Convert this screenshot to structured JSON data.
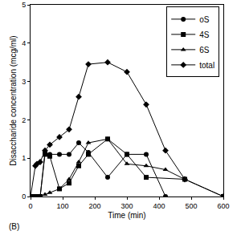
{
  "chart_data": {
    "type": "line",
    "x_label": "Time (min)",
    "y_label": "Disaccharide concentration (mcg/ml)",
    "annotations": [
      "(B)"
    ],
    "xlim": [
      0,
      600
    ],
    "xticks": [
      0,
      100,
      200,
      300,
      400,
      500,
      600
    ],
    "ylim": [
      0,
      5
    ],
    "yticks": [
      0,
      1,
      2,
      3,
      4,
      5
    ],
    "grid": false,
    "legend": "top right",
    "series": [
      {
        "name": "oS",
        "color": "#000000",
        "marker": "circle",
        "x": [
          0,
          15,
          30,
          45,
          60,
          90,
          120,
          150,
          180,
          240,
          300,
          360,
          420
        ],
        "values": [
          0,
          0,
          0,
          1.15,
          1.1,
          1.1,
          1.1,
          1.4,
          1.15,
          0.5,
          1.1,
          1.1,
          0
        ]
      },
      {
        "name": "4S",
        "color": "#000000",
        "marker": "square",
        "x": [
          0,
          15,
          30,
          45,
          60,
          90,
          120,
          150,
          180,
          240,
          300,
          360,
          480,
          600
        ],
        "values": [
          0,
          0,
          0,
          1.1,
          1.05,
          0.2,
          0.35,
          0.8,
          1.1,
          1.5,
          1.1,
          0.5,
          0.45,
          0
        ]
      },
      {
        "name": "6S",
        "color": "#000000",
        "marker": "triangle-up",
        "x": [
          0,
          30,
          45,
          60,
          90,
          120,
          150,
          180,
          240,
          300,
          360,
          420,
          480
        ],
        "values": [
          0,
          0,
          0.05,
          0.1,
          0.2,
          0.45,
          0.9,
          1.4,
          1.5,
          0.85,
          0.8,
          0.7,
          0.45
        ]
      },
      {
        "name": "total",
        "color": "#000000",
        "marker": "diamond",
        "x": [
          0,
          15,
          20,
          30,
          45,
          60,
          90,
          120,
          150,
          180,
          240,
          300,
          360,
          420,
          480,
          600
        ],
        "values": [
          0,
          0.8,
          0.85,
          0.9,
          1.2,
          1.35,
          1.55,
          1.75,
          2.6,
          3.45,
          3.5,
          3.25,
          2.4,
          1.2,
          0.45,
          0
        ]
      }
    ]
  }
}
